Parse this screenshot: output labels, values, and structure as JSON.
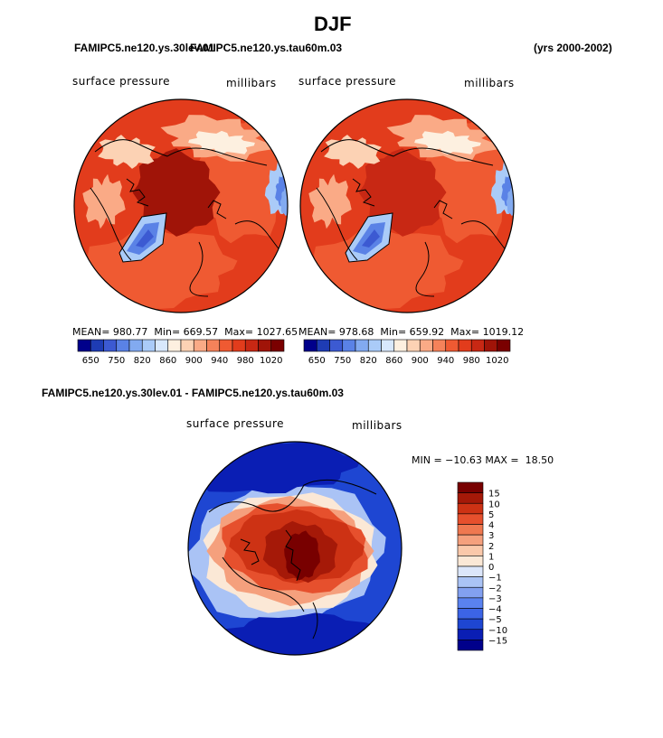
{
  "page": {
    "title": "DJF",
    "left_run": "FAMIPC5.ne120.ys.30lev.01",
    "right_run": "FAMIPC5.ne120.ys.tau60m.03",
    "years": "(yrs 2000-2002)",
    "diff_title": "FAMIPC5.ne120.ys.30lev.01 - FAMIPC5.ne120.ys.tau60m.03"
  },
  "colors": {
    "pressure_scale": [
      "#00008b",
      "#1e3cb4",
      "#3c5ad2",
      "#5a82e6",
      "#82aaf0",
      "#aacbf8",
      "#d8e8fc",
      "#fdf0e0",
      "#fcd2b4",
      "#faaa86",
      "#f5825a",
      "#ef5a32",
      "#e23c1c",
      "#c82814",
      "#a01408",
      "#7a0000"
    ],
    "diff_scale": [
      "#00008b",
      "#0a1eb4",
      "#1e46d2",
      "#3c64e6",
      "#5a82f0",
      "#82a0f0",
      "#aac3f5",
      "#dce6fa",
      "#fbe8d6",
      "#fac8aa",
      "#f5a07d",
      "#ef7850",
      "#e6502d",
      "#cd3214",
      "#a51908",
      "#780000"
    ],
    "coast": "#000000"
  },
  "chart_data": [
    {
      "type": "heatmap",
      "name": "left-polar-map",
      "run": "FAMIPC5.ne120.ys.30lev.01",
      "variable_label": "surface pressure",
      "units_label": "millibars",
      "stats": {
        "mean": "980.77",
        "min": "669.57",
        "max": "1027.65"
      },
      "mean_label": "MEAN=",
      "min_label": "Min=",
      "max_label": "Max=",
      "colorbar_ticks": [
        "650",
        "750",
        "820",
        "860",
        "900",
        "940",
        "980",
        "1020"
      ]
    },
    {
      "type": "heatmap",
      "name": "right-polar-map",
      "run": "FAMIPC5.ne120.ys.tau60m.03",
      "variable_label": "surface pressure",
      "units_label": "millibars",
      "stats": {
        "mean": "978.68",
        "min": "659.92",
        "max": "1019.12"
      },
      "mean_label": "MEAN=",
      "min_label": "Min=",
      "max_label": "Max=",
      "colorbar_ticks": [
        "650",
        "750",
        "820",
        "860",
        "900",
        "940",
        "980",
        "1020"
      ]
    },
    {
      "type": "heatmap",
      "name": "difference-polar-map",
      "variable_label": "surface pressure",
      "units_label": "millibars",
      "min_max_text": "MIN = −10.63 MAX =  18.50",
      "min": -10.63,
      "max": 18.5,
      "colorbar_ticks": [
        "15",
        "10",
        "5",
        "4",
        "3",
        "2",
        "1",
        "0",
        "−1",
        "−2",
        "−3",
        "−4",
        "−5",
        "−10",
        "−15"
      ]
    }
  ]
}
